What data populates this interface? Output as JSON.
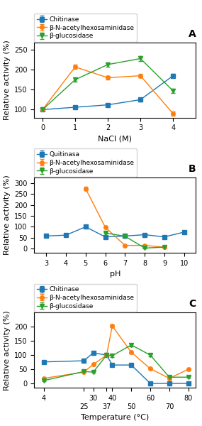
{
  "chart_data": [
    {
      "type": "line",
      "title": "A",
      "x_label": "NaCl (M)",
      "y_label": "Relative activity (%)",
      "xlim": [
        -0.25,
        4.7
      ],
      "xticks": [
        0,
        1,
        2,
        3,
        4
      ],
      "ylim": [
        80,
        268
      ],
      "yticks": [
        100,
        150,
        200,
        250
      ],
      "legend": "upper left",
      "series": [
        {
          "name": "Chitinase",
          "marker": "square",
          "x": [
            0,
            1,
            2,
            3,
            4
          ],
          "values": [
            100,
            106,
            112,
            125,
            185
          ],
          "yerr": [
            3,
            4,
            3,
            5,
            4
          ]
        },
        {
          "name": "β-N-acetylhexosaminidase",
          "marker": "circle",
          "x": [
            0,
            1,
            2,
            3,
            4
          ],
          "values": [
            100,
            207,
            180,
            185,
            90
          ],
          "yerr": [
            3,
            5,
            4,
            5,
            6
          ]
        },
        {
          "name": "β-glucosidase",
          "marker": "triangle_down",
          "x": [
            0,
            1,
            2,
            3,
            4
          ],
          "values": [
            100,
            175,
            213,
            228,
            147
          ],
          "yerr": [
            3,
            5,
            5,
            6,
            5
          ]
        }
      ]
    },
    {
      "type": "line",
      "title": "B",
      "x_label": "pH",
      "y_label": "Relative activity (%)",
      "xlim": [
        2.4,
        10.6
      ],
      "xticks": [
        3,
        4,
        5,
        6,
        7,
        8,
        9,
        10
      ],
      "ylim": [
        -18,
        325
      ],
      "yticks": [
        0,
        50,
        100,
        150,
        200,
        250,
        300
      ],
      "legend": "upper left",
      "series": [
        {
          "name": "Quitinasa",
          "marker": "square",
          "x": [
            3,
            4,
            5,
            6,
            7,
            8,
            9,
            10
          ],
          "values": [
            58,
            62,
            100,
            54,
            58,
            64,
            54,
            76
          ],
          "yerr": [
            3,
            3,
            5,
            3,
            3,
            3,
            3,
            4
          ]
        },
        {
          "name": "β-N-acetylhexosaminidase",
          "marker": "circle",
          "x": [
            5,
            6,
            7,
            8,
            9
          ],
          "values": [
            275,
            98,
            15,
            15,
            7
          ],
          "yerr": [
            8,
            4,
            3,
            3,
            2
          ]
        },
        {
          "name": "β-glucosidase",
          "marker": "triangle_down",
          "x": [
            6,
            7,
            8,
            9
          ],
          "values": [
            72,
            57,
            3,
            7
          ],
          "yerr": [
            4,
            3,
            2,
            2
          ]
        }
      ]
    },
    {
      "type": "line",
      "title": "C",
      "x_label": "Temperature (°C)",
      "y_label": "Relative activity (%)",
      "xlim": [
        -1,
        84
      ],
      "xticks": [
        4,
        25,
        30,
        37,
        40,
        50,
        60,
        70,
        80
      ],
      "ylim": [
        -15,
        250
      ],
      "yticks": [
        0,
        50,
        100,
        150,
        200
      ],
      "legend": "upper left",
      "series": [
        {
          "name": "Chitinase",
          "marker": "square",
          "x": [
            4,
            25,
            30,
            37,
            40,
            50,
            60,
            70,
            80
          ],
          "values": [
            76,
            80,
            108,
            100,
            65,
            65,
            0,
            0,
            0
          ],
          "yerr": [
            3,
            3,
            4,
            3,
            3,
            3,
            1,
            1,
            1
          ]
        },
        {
          "name": "β-N-acetylhexosaminidase",
          "marker": "circle",
          "x": [
            4,
            25,
            30,
            37,
            40,
            50,
            60,
            70,
            80
          ],
          "values": [
            18,
            40,
            67,
            100,
            203,
            110,
            52,
            18,
            50
          ],
          "yerr": [
            2,
            3,
            3,
            4,
            6,
            4,
            3,
            2,
            3
          ]
        },
        {
          "name": "β-glucosidase",
          "marker": "triangle_down",
          "x": [
            4,
            25,
            30,
            37,
            40,
            50,
            60,
            70,
            80
          ],
          "values": [
            10,
            42,
            40,
            100,
            98,
            136,
            100,
            22,
            22
          ],
          "yerr": [
            2,
            3,
            3,
            3,
            4,
            5,
            4,
            2,
            2
          ]
        }
      ]
    }
  ]
}
